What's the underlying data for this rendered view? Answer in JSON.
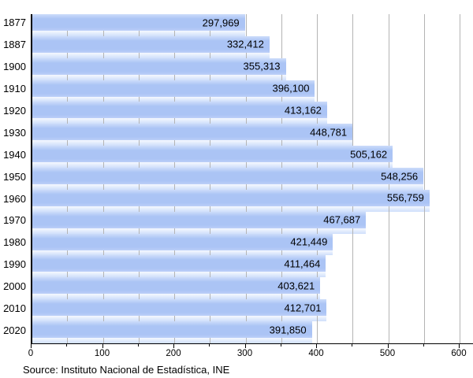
{
  "chart_data": {
    "type": "bar",
    "orientation": "horizontal",
    "title": "",
    "xlabel": "",
    "ylabel": "",
    "categories": [
      "1877",
      "1887",
      "1900",
      "1910",
      "1920",
      "1930",
      "1940",
      "1950",
      "1960",
      "1970",
      "1980",
      "1990",
      "2000",
      "2010",
      "2020"
    ],
    "values": [
      297969,
      332412,
      355313,
      396100,
      413162,
      448781,
      505162,
      548256,
      556759,
      467687,
      421449,
      411464,
      403621,
      412701,
      391850
    ],
    "value_labels": [
      "297,969",
      "332,412",
      "355,313",
      "396,100",
      "413,162",
      "448,781",
      "505,162",
      "548,256",
      "556,759",
      "467,687",
      "421,449",
      "411,464",
      "403,621",
      "412,701",
      "391,850"
    ],
    "x_axis": {
      "min": 0,
      "max": 600,
      "major_step": 100,
      "minor_step": 50,
      "tick_labels": [
        "0",
        "100",
        "200",
        "300",
        "400",
        "500",
        "600"
      ]
    },
    "grid": {
      "vertical": true,
      "step": 50
    },
    "legend": null
  },
  "source_note": "Source: Instituto Nacional de Estadística, INE",
  "colors": {
    "bar_fill": "#abc4f5",
    "bar_fill_top": "#cddcfa",
    "bar_fill_bottom": "#bccff8",
    "reflection_top": "#f2f6fe",
    "reflection_bottom": "#cfdffb",
    "gridline": "#b4b4b4",
    "axis": "#000000",
    "text": "#000000",
    "background": "#ffffff"
  }
}
